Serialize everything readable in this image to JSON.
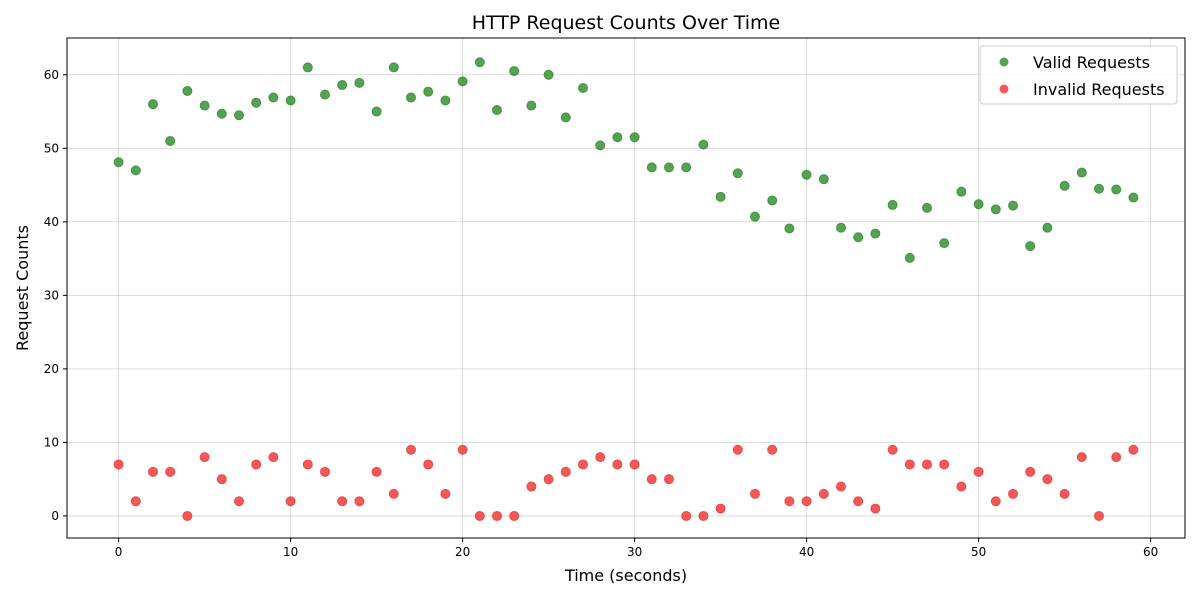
{
  "chart_data": {
    "type": "scatter",
    "title": "HTTP Request Counts Over Time",
    "xlabel": "Time (seconds)",
    "ylabel": "Request Counts",
    "xlim": [
      -3,
      62
    ],
    "ylim": [
      -3,
      65
    ],
    "x_ticks": [
      0,
      10,
      20,
      30,
      40,
      50,
      60
    ],
    "y_ticks": [
      0,
      10,
      20,
      30,
      40,
      50,
      60
    ],
    "grid": true,
    "legend_position": "top-right",
    "x": [
      0,
      1,
      2,
      3,
      4,
      5,
      6,
      7,
      8,
      9,
      10,
      11,
      12,
      13,
      14,
      15,
      16,
      17,
      18,
      19,
      20,
      21,
      22,
      23,
      24,
      25,
      26,
      27,
      28,
      29,
      30,
      31,
      32,
      33,
      34,
      35,
      36,
      37,
      38,
      39,
      40,
      41,
      42,
      43,
      44,
      45,
      46,
      47,
      48,
      49,
      50,
      51,
      52,
      53,
      54,
      55,
      56,
      57,
      58,
      59
    ],
    "series": [
      {
        "name": "Valid Requests",
        "color": "#2a8a2a",
        "values": [
          48.1,
          47.0,
          56.0,
          51.0,
          57.8,
          55.8,
          54.7,
          54.5,
          56.2,
          56.9,
          56.5,
          61.0,
          57.3,
          58.6,
          58.9,
          55.0,
          61.0,
          56.9,
          57.7,
          56.5,
          59.1,
          61.7,
          55.2,
          60.5,
          55.8,
          60.0,
          54.2,
          58.2,
          50.4,
          51.5,
          51.5,
          47.4,
          47.4,
          47.4,
          50.5,
          43.4,
          46.6,
          40.7,
          42.9,
          39.1,
          46.4,
          45.8,
          39.2,
          37.9,
          38.4,
          42.3,
          35.1,
          41.9,
          37.1,
          44.1,
          42.4,
          41.7,
          42.2,
          36.7,
          39.2,
          44.9,
          46.7,
          44.5,
          44.4,
          43.3
        ]
      },
      {
        "name": "Invalid Requests",
        "color": "#f03030",
        "values": [
          7,
          2,
          6,
          6,
          0,
          8,
          5,
          2,
          7,
          8,
          2,
          7,
          6,
          2,
          2,
          6,
          3,
          9,
          7,
          3,
          9,
          0,
          0,
          0,
          4,
          5,
          6,
          7,
          8,
          7,
          7,
          5,
          5,
          0,
          0,
          1,
          9,
          3,
          9,
          2,
          2,
          3,
          4,
          2,
          1,
          9,
          7,
          7,
          7,
          4,
          6,
          2,
          3,
          6,
          5,
          3,
          8,
          0,
          8,
          9
        ]
      }
    ]
  }
}
